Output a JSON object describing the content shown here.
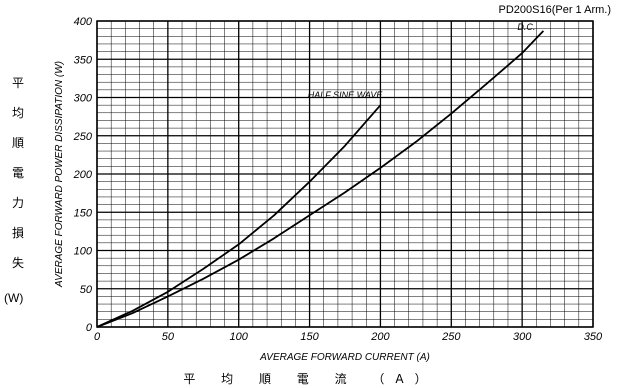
{
  "model_label": "PD200S16(Per 1 Arm.)",
  "y_label_cjk": [
    "平",
    "均",
    "順",
    "電",
    "力",
    "損",
    "失"
  ],
  "y_label_unit": "(W)",
  "x_label_cjk": "平 均 順 電 流 （A）",
  "chart_data": {
    "type": "line",
    "xlabel": "AVERAGE FORWARD CURRENT (A)",
    "ylabel": "AVERAGE FORWARD POWER DISSIPATION (W)",
    "xlim": [
      0,
      350
    ],
    "ylim": [
      0,
      400
    ],
    "x_major_ticks": [
      0,
      50,
      100,
      150,
      200,
      250,
      300,
      350
    ],
    "y_major_ticks": [
      0,
      50,
      100,
      150,
      200,
      250,
      300,
      350,
      400
    ],
    "x_tick_labels": [
      "0",
      "50",
      "100",
      "150",
      "200",
      "250",
      "300",
      "350"
    ],
    "y_tick_labels": [
      "0",
      "50",
      "100",
      "150",
      "200",
      "250",
      "300",
      "350",
      "400"
    ],
    "grid": true,
    "series": [
      {
        "name": "HALF SINE WAVE",
        "x": [
          0,
          25,
          50,
          75,
          100,
          125,
          150,
          175,
          200
        ],
        "y": [
          0,
          21,
          46,
          76,
          108,
          146,
          190,
          237,
          290
        ]
      },
      {
        "name": "D.C.",
        "x": [
          0,
          25,
          50,
          75,
          100,
          125,
          150,
          175,
          200,
          225,
          250,
          275,
          300,
          315
        ],
        "y": [
          0,
          18,
          40,
          63,
          88,
          116,
          146,
          176,
          208,
          242,
          279,
          318,
          358,
          387
        ]
      }
    ]
  }
}
